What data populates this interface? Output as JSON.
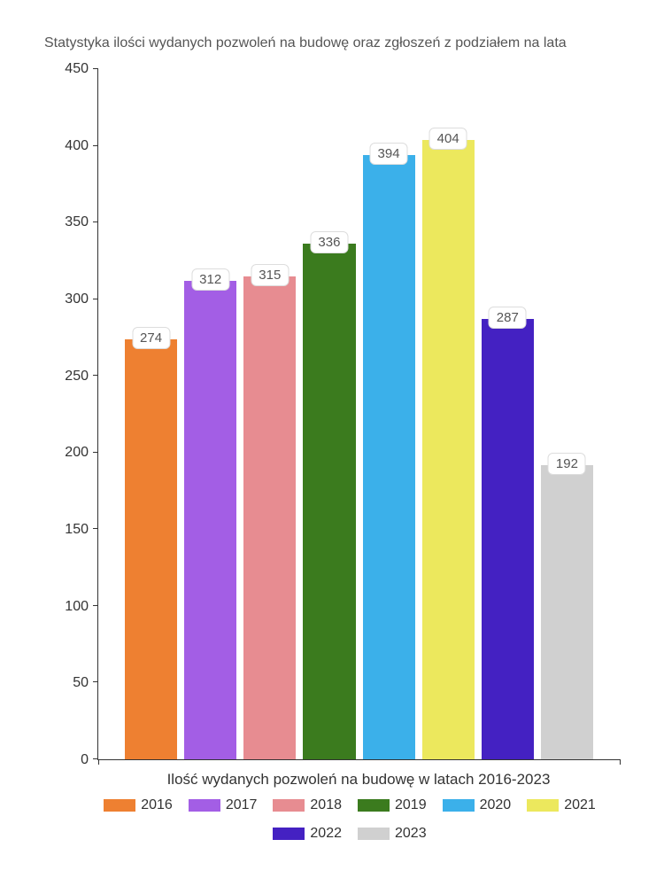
{
  "chart": {
    "type": "bar",
    "title": "Statystyka ilości wydanych pozwoleń na budowę oraz zgłoszeń z podziałem na lata",
    "xlabel": "Ilość wydanych pozwoleń na budowę w latach 2016-2023",
    "ylim": [
      0,
      450
    ],
    "ytick_step": 50,
    "yticks": [
      0,
      50,
      100,
      150,
      200,
      250,
      300,
      350,
      400,
      450
    ],
    "background_color": "#ffffff",
    "text_color": "#333333",
    "title_color": "#555555",
    "axis_color": "#333333",
    "title_fontsize": 16,
    "label_fontsize": 17,
    "tick_fontsize": 16,
    "legend_fontsize": 16,
    "bar_width": 0.9,
    "value_label_bg": "#ffffff",
    "value_label_border": "#dddddd",
    "value_label_radius": 6,
    "series": [
      {
        "year": "2016",
        "value": 274,
        "color": "#ee8031"
      },
      {
        "year": "2017",
        "value": 312,
        "color": "#a35ee5"
      },
      {
        "year": "2018",
        "value": 315,
        "color": "#e78c91"
      },
      {
        "year": "2019",
        "value": 336,
        "color": "#3b7b1e"
      },
      {
        "year": "2020",
        "value": 394,
        "color": "#3bb0ea"
      },
      {
        "year": "2021",
        "value": 404,
        "color": "#ece85d"
      },
      {
        "year": "2022",
        "value": 287,
        "color": "#4421c2"
      },
      {
        "year": "2023",
        "value": 192,
        "color": "#d0d0d0"
      }
    ]
  }
}
